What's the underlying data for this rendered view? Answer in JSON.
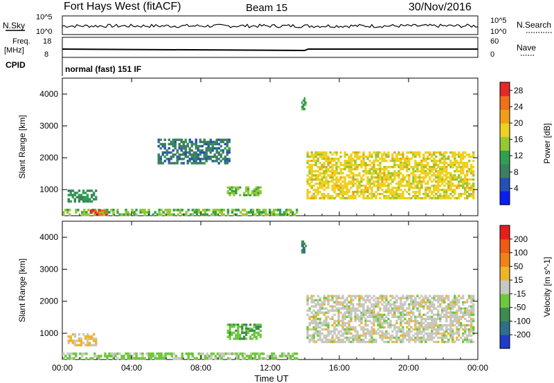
{
  "header": {
    "station": "Fort Hays West (fitACF)",
    "beam": "Beam 15",
    "date": "30/Nov/2016"
  },
  "side_labels": {
    "nsky": "N.Sky",
    "nsky_ticks": [
      "10^5",
      "10^0"
    ],
    "nsearch": "N.Search",
    "nsearch_ticks": [
      "10^5",
      "10^0"
    ],
    "freq": "Freq.",
    "freq_unit": "[MHz]",
    "freq_ticks": [
      "18",
      "8"
    ],
    "nave": "Nave",
    "nave_ticks": [
      "60",
      "0"
    ],
    "cpid": "CPID",
    "mode": "normal (fast) 151 IF"
  },
  "chart_data": [
    {
      "type": "heatmap",
      "title": "",
      "xlabel": "",
      "ylabel": "Slant Range [km]",
      "x_ticks": [
        "00:00",
        "04:00",
        "08:00",
        "12:00",
        "16:00",
        "20:00",
        "00:00"
      ],
      "xlim": [
        0,
        24
      ],
      "y_ticks": [
        1000,
        2000,
        3000,
        4000
      ],
      "ylim": [
        180,
        4500
      ],
      "colorbar": {
        "label": "Power [dB]",
        "ticks": [
          4,
          8,
          12,
          16,
          20,
          24,
          28
        ],
        "range": [
          0,
          30
        ],
        "colors": [
          "#0a1ef0",
          "#2450b8",
          "#3d8060",
          "#2fa050",
          "#96c832",
          "#f0d020",
          "#f0a018",
          "#f07018",
          "#e62828"
        ]
      },
      "regions": [
        {
          "t": [
            0.3,
            2.0
          ],
          "r": [
            600,
            1000
          ],
          "level": 10
        },
        {
          "t": [
            0.0,
            13.6
          ],
          "r": [
            180,
            400
          ],
          "level": 14
        },
        {
          "t": [
            1.6,
            2.6
          ],
          "r": [
            180,
            380
          ],
          "level": 26
        },
        {
          "t": [
            9.5,
            11.5
          ],
          "r": [
            800,
            1100
          ],
          "level": 14
        },
        {
          "t": [
            5.5,
            9.7
          ],
          "r": [
            1800,
            2600
          ],
          "level": 8
        },
        {
          "t": [
            13.8,
            14.1
          ],
          "r": [
            3500,
            3900
          ],
          "level": 12
        },
        {
          "t": [
            14.1,
            23.8
          ],
          "r": [
            700,
            2200
          ],
          "level": 18
        }
      ]
    },
    {
      "type": "heatmap",
      "title": "",
      "xlabel": "Time UT",
      "ylabel": "Slant Range [km]",
      "x_ticks": [
        "00:00",
        "04:00",
        "08:00",
        "12:00",
        "16:00",
        "20:00",
        "00:00"
      ],
      "xlim": [
        0,
        24
      ],
      "y_ticks": [
        1000,
        2000,
        3000,
        4000
      ],
      "ylim": [
        180,
        4500
      ],
      "colorbar": {
        "label": "Velocity [m s^-1]",
        "ticks": [
          "200",
          "100",
          "50",
          "15",
          "-15",
          "-50",
          "-100",
          "-200"
        ],
        "range": [
          -250,
          250
        ],
        "colors": [
          "#1e3cc8",
          "#2f6e8c",
          "#3c8c50",
          "#6ec83c",
          "#c8c8c0",
          "#f0b428",
          "#f08218",
          "#f05a14",
          "#e61e1e"
        ]
      },
      "regions": [
        {
          "t": [
            0.3,
            2.0
          ],
          "r": [
            600,
            1000
          ],
          "velocity": 30
        },
        {
          "t": [
            0.0,
            13.6
          ],
          "r": [
            180,
            400
          ],
          "velocity": -40
        },
        {
          "t": [
            9.5,
            11.5
          ],
          "r": [
            800,
            1300
          ],
          "velocity": -70
        },
        {
          "t": [
            13.8,
            14.1
          ],
          "r": [
            3500,
            3900
          ],
          "velocity": -150
        },
        {
          "t": [
            14.1,
            23.8
          ],
          "r": [
            700,
            2200
          ],
          "velocity": 0
        }
      ]
    }
  ]
}
